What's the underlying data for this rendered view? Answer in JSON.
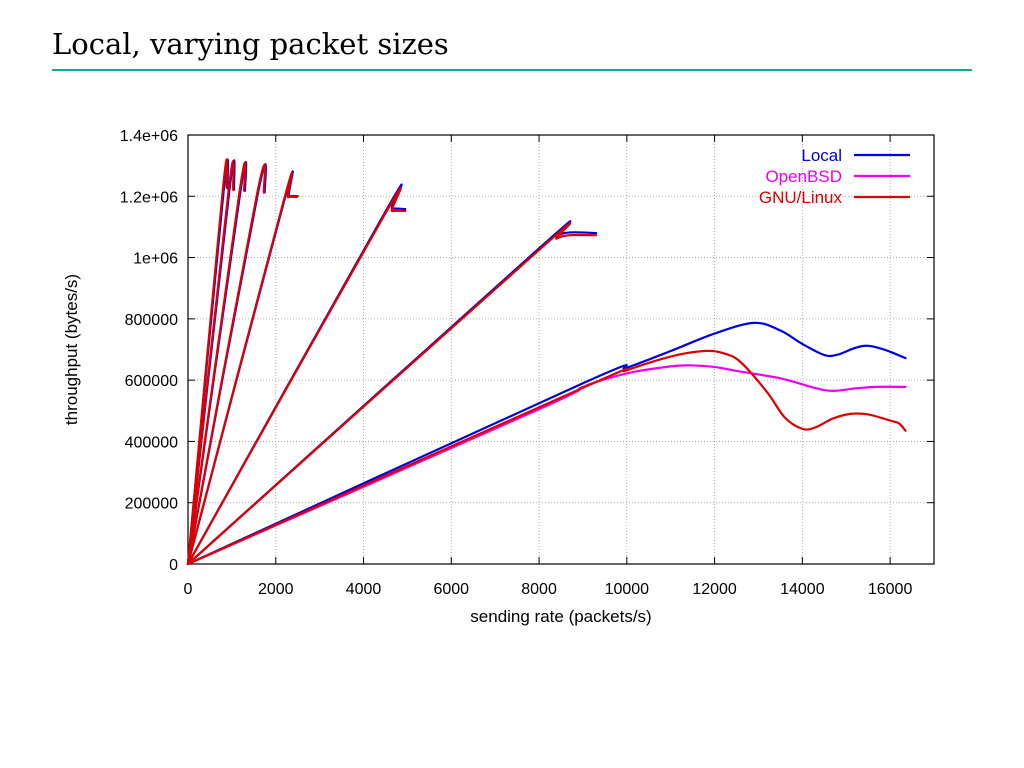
{
  "slide": {
    "title": "Local, varying packet sizes",
    "rule_color": "#14a3a3"
  },
  "chart_data": {
    "type": "line",
    "xlabel": "sending rate (packets/s)",
    "ylabel": "throughput (bytes/s)",
    "xlim": [
      0,
      17000
    ],
    "ylim": [
      0,
      1400000
    ],
    "xticks": [
      0,
      2000,
      4000,
      6000,
      8000,
      10000,
      12000,
      14000,
      16000
    ],
    "xtick_labels": [
      "0",
      "2000",
      "4000",
      "6000",
      "8000",
      "10000",
      "12000",
      "14000",
      "16000"
    ],
    "yticks": [
      0,
      200000,
      400000,
      600000,
      800000,
      1000000,
      1200000,
      1400000
    ],
    "ytick_labels": [
      "0",
      "200000",
      "400000",
      "600000",
      "800000",
      "1e+06",
      "1.2e+06",
      "1.4e+06"
    ],
    "grid": true,
    "legend_position": "top-right",
    "series": [
      {
        "name": "Local",
        "color": "#0000dd",
        "runs": [
          [
            [
              0,
              0
            ],
            [
              820,
              1230000
            ],
            [
              900,
              1225000
            ]
          ],
          [
            [
              0,
              0
            ],
            [
              950,
              1228000
            ],
            [
              1050,
              1222000
            ]
          ],
          [
            [
              0,
              0
            ],
            [
              1200,
              1222000
            ],
            [
              1300,
              1218000
            ]
          ],
          [
            [
              0,
              0
            ],
            [
              1600,
              1215000
            ],
            [
              1750,
              1213000
            ]
          ],
          [
            [
              0,
              0
            ],
            [
              2200,
              1190000
            ],
            [
              2300,
              1200000
            ],
            [
              2500,
              1200000
            ]
          ],
          [
            [
              0,
              0
            ],
            [
              4500,
              1150000
            ],
            [
              4650,
              1160000
            ],
            [
              4950,
              1158000
            ]
          ],
          [
            [
              0,
              0
            ],
            [
              8000,
              1030000
            ],
            [
              8400,
              1070000
            ],
            [
              8700,
              1082000
            ],
            [
              9300,
              1080000
            ]
          ],
          [
            [
              0,
              0
            ],
            [
              9000,
              590000
            ],
            [
              10000,
              640000
            ],
            [
              11000,
              695000
            ],
            [
              12000,
              752000
            ],
            [
              12900,
              787000
            ],
            [
              13500,
              762000
            ],
            [
              14000,
              718000
            ],
            [
              14500,
              682000
            ],
            [
              14800,
              683000
            ],
            [
              15200,
              705000
            ],
            [
              15500,
              712000
            ],
            [
              15900,
              698000
            ],
            [
              16350,
              672000
            ]
          ]
        ]
      },
      {
        "name": "OpenBSD",
        "color": "#ee00ee",
        "runs": [
          [
            [
              0,
              0
            ],
            [
              8000,
              505000
            ],
            [
              9000,
              578000
            ],
            [
              10000,
              622000
            ],
            [
              11000,
              645000
            ],
            [
              11500,
              648000
            ],
            [
              12000,
              643000
            ],
            [
              12500,
              630000
            ],
            [
              13500,
              606000
            ],
            [
              14300,
              574000
            ],
            [
              14700,
              565000
            ],
            [
              15200,
              573000
            ],
            [
              15700,
              578000
            ],
            [
              16350,
              578000
            ]
          ]
        ]
      },
      {
        "name": "GNU/Linux",
        "color": "#dd0000",
        "runs": [
          [
            [
              0,
              0
            ],
            [
              800,
              1230000
            ],
            [
              880,
              1228000
            ]
          ],
          [
            [
              0,
              0
            ],
            [
              930,
              1225000
            ],
            [
              1030,
              1220000
            ]
          ],
          [
            [
              0,
              0
            ],
            [
              1180,
              1220000
            ],
            [
              1280,
              1218000
            ]
          ],
          [
            [
              0,
              0
            ],
            [
              1580,
              1212000
            ],
            [
              1730,
              1212000
            ]
          ],
          [
            [
              0,
              0
            ],
            [
              2180,
              1185000
            ],
            [
              2280,
              1197000
            ],
            [
              2480,
              1198000
            ]
          ],
          [
            [
              0,
              0
            ],
            [
              4480,
              1140000
            ],
            [
              4650,
              1152000
            ],
            [
              4950,
              1152000
            ]
          ],
          [
            [
              0,
              0
            ],
            [
              8000,
              1025000
            ],
            [
              8400,
              1062000
            ],
            [
              8700,
              1073000
            ],
            [
              9300,
              1073000
            ]
          ],
          [
            [
              0,
              0
            ],
            [
              9000,
              575000
            ],
            [
              10000,
              632000
            ],
            [
              11000,
              677000
            ],
            [
              11750,
              695000
            ],
            [
              12200,
              688000
            ],
            [
              12600,
              658000
            ],
            [
              13200,
              560000
            ],
            [
              13600,
              478000
            ],
            [
              14000,
              441000
            ],
            [
              14300,
              446000
            ],
            [
              14700,
              475000
            ],
            [
              15100,
              490000
            ],
            [
              15500,
              488000
            ],
            [
              16000,
              468000
            ],
            [
              16200,
              459000
            ],
            [
              16350,
              435000
            ]
          ]
        ]
      }
    ]
  }
}
